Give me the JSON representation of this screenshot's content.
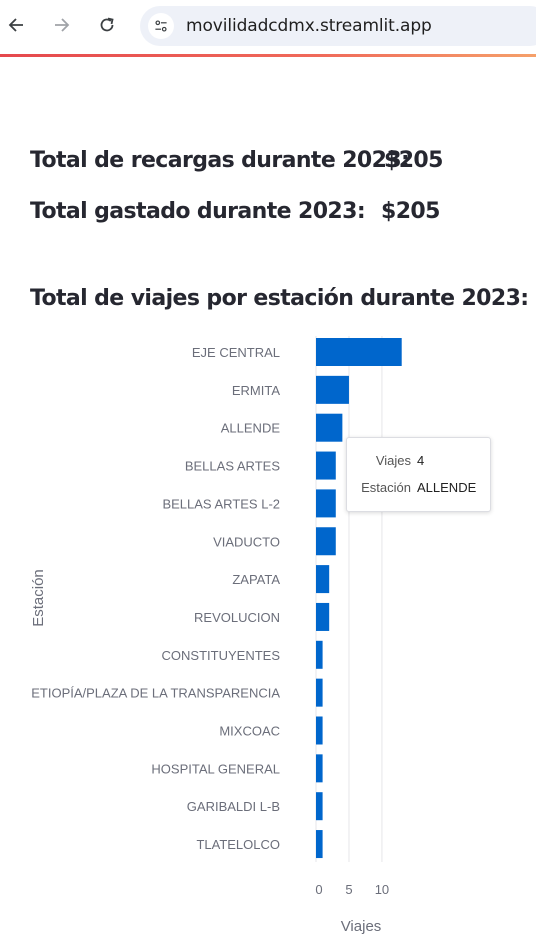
{
  "browser": {
    "url": "movilidadcdmx.streamlit.app"
  },
  "summary": {
    "recargas_label": "Total de recargas durante 2023:",
    "recargas_value": "$205",
    "gastado_label": "Total gastado durante 2023:",
    "gastado_value": "$205"
  },
  "chart_section": {
    "title": "Total de viajes por estación durante 2023:"
  },
  "tooltip": {
    "key1": "Viajes",
    "val1": "4",
    "key2": "Estación",
    "val2": "ALLENDE"
  },
  "colors": {
    "bar": "#0066cc",
    "grid": "#e6e6e9"
  },
  "chart_data": {
    "type": "bar",
    "orientation": "horizontal",
    "categories": [
      "EJE CENTRAL",
      "ERMITA",
      "ALLENDE",
      "BELLAS ARTES",
      "BELLAS ARTES L-2",
      "VIADUCTO",
      "ZAPATA",
      "REVOLUCION",
      "CONSTITUYENTES",
      "ETIOPÍA/PLAZA DE LA TRANSPARENCIA",
      "MIXCOAC",
      "HOSPITAL GENERAL",
      "GARIBALDI L-B",
      "TLATELOLCO"
    ],
    "values": [
      13,
      5,
      4,
      3,
      3,
      3,
      2,
      2,
      1,
      1,
      1,
      1,
      1,
      1
    ],
    "xlabel": "Viajes",
    "ylabel": "Estación",
    "xticks": [
      0,
      5,
      10
    ],
    "xlim": [
      0,
      13.5
    ],
    "grid": true
  }
}
